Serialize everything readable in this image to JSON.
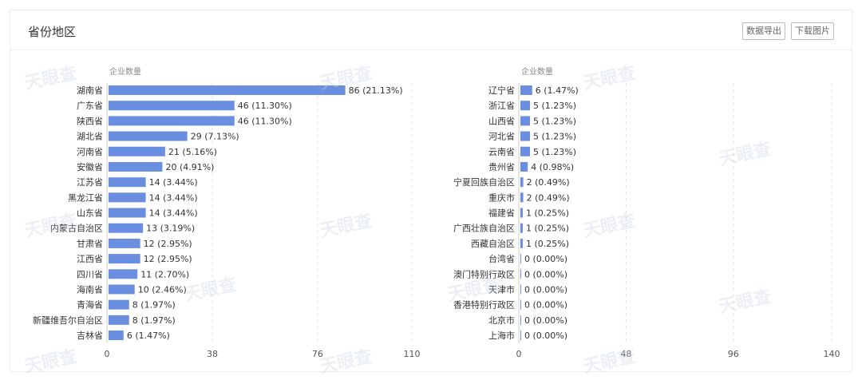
{
  "card": {
    "title": "省份地区",
    "export_label": "数据导出",
    "download_label": "下载图片"
  },
  "watermark": "天眼查",
  "colors": {
    "bar": "#6b8fe0",
    "grid": "#e4e4e4",
    "axis": "#ccc"
  },
  "chart_data": [
    {
      "type": "bar",
      "orientation": "horizontal",
      "ylabel": "企业数量",
      "xlim": [
        0,
        110
      ],
      "xticks": [
        0,
        38,
        76,
        110
      ],
      "grid": true,
      "categories": [
        "湖南省",
        "广东省",
        "陕西省",
        "湖北省",
        "河南省",
        "安徽省",
        "江苏省",
        "黑龙江省",
        "山东省",
        "内蒙古自治区",
        "甘肃省",
        "江西省",
        "四川省",
        "海南省",
        "青海省",
        "新疆维吾尔自治区",
        "吉林省"
      ],
      "values": [
        86,
        46,
        46,
        29,
        21,
        20,
        14,
        14,
        14,
        13,
        12,
        12,
        11,
        10,
        8,
        8,
        6
      ],
      "percents": [
        "21.13%",
        "11.30%",
        "11.30%",
        "7.13%",
        "5.16%",
        "4.91%",
        "3.44%",
        "3.44%",
        "3.44%",
        "3.19%",
        "2.95%",
        "2.95%",
        "2.70%",
        "2.46%",
        "1.97%",
        "1.97%",
        "1.47%"
      ]
    },
    {
      "type": "bar",
      "orientation": "horizontal",
      "ylabel": "企业数量",
      "xlim": [
        0,
        140
      ],
      "xticks": [
        0,
        48,
        96,
        140
      ],
      "grid": true,
      "categories": [
        "辽宁省",
        "浙江省",
        "山西省",
        "河北省",
        "云南省",
        "贵州省",
        "宁夏回族自治区",
        "重庆市",
        "福建省",
        "广西壮族自治区",
        "西藏自治区",
        "台湾省",
        "澳门特别行政区",
        "天津市",
        "香港特别行政区",
        "北京市",
        "上海市"
      ],
      "values": [
        6,
        5,
        5,
        5,
        5,
        4,
        2,
        2,
        1,
        1,
        1,
        0,
        0,
        0,
        0,
        0,
        0
      ],
      "percents": [
        "1.47%",
        "1.23%",
        "1.23%",
        "1.23%",
        "1.23%",
        "0.98%",
        "0.49%",
        "0.49%",
        "0.25%",
        "0.25%",
        "0.25%",
        "0.00%",
        "0.00%",
        "0.00%",
        "0.00%",
        "0.00%",
        "0.00%"
      ]
    }
  ]
}
